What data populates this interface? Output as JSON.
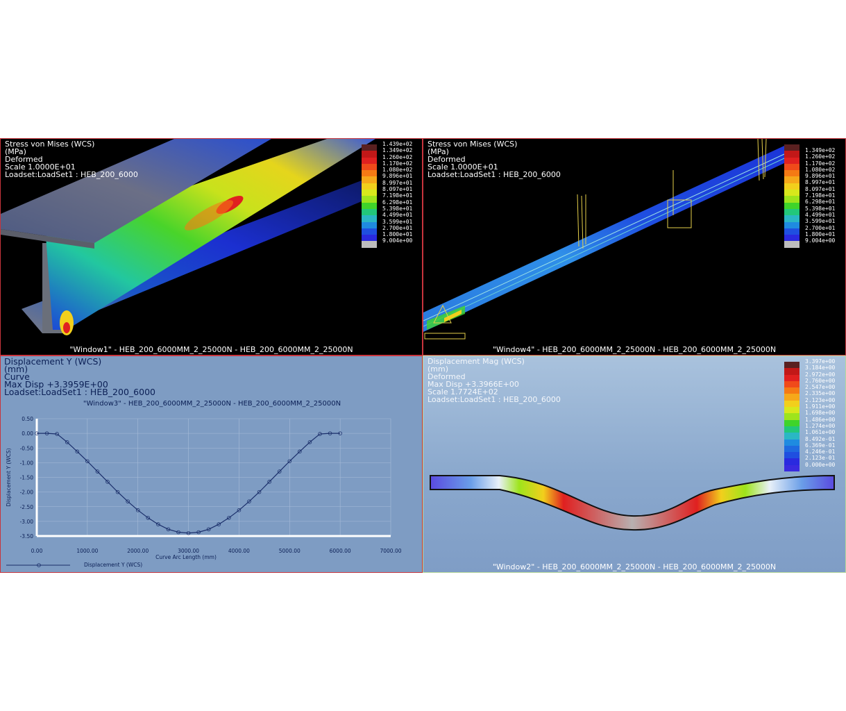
{
  "window1": {
    "header": [
      "Stress von Mises (WCS)",
      "(MPa)",
      "Deformed",
      "Scale  1.0000E+01",
      "Loadset:LoadSet1 :   HEB_200_6000"
    ],
    "caption": "\"Window1\" - HEB_200_6000MM_2_25000N - HEB_200_6000MM_2_25000N",
    "legend_top": "1.439e+02",
    "legend": [
      "1.349e+02",
      "1.260e+02",
      "1.170e+02",
      "1.080e+02",
      "9.896e+01",
      "8.997e+01",
      "8.097e+01",
      "7.198e+01",
      "6.298e+01",
      "5.398e+01",
      "4.499e+01",
      "3.599e+01",
      "2.700e+01",
      "1.800e+01",
      "9.004e+00"
    ],
    "colors": [
      "#5a2020",
      "#c21818",
      "#e02020",
      "#f04a1a",
      "#f57a14",
      "#f6a81a",
      "#f2cf1c",
      "#d8e81c",
      "#9ee41c",
      "#3fd42a",
      "#22c77a",
      "#2ab7c4",
      "#1f8be0",
      "#1f4fe0",
      "#2a2adf",
      "#bdbdbd"
    ]
  },
  "window4": {
    "header": [
      "Stress von Mises (WCS)",
      "(MPa)",
      "Deformed",
      "Scale  1.0000E+01",
      "Loadset:LoadSet1 :   HEB_200_6000"
    ],
    "caption": "\"Window4\" - HEB_200_6000MM_2_25000N - HEB_200_6000MM_2_25000N",
    "legend": [
      "1.349e+02",
      "1.260e+02",
      "1.170e+02",
      "1.080e+02",
      "9.896e+01",
      "8.997e+01",
      "8.097e+01",
      "7.198e+01",
      "6.298e+01",
      "5.398e+01",
      "4.499e+01",
      "3.599e+01",
      "2.700e+01",
      "1.800e+01",
      "9.004e+00"
    ]
  },
  "window3": {
    "header": [
      "Displacement Y (WCS)",
      "(mm)",
      "Curve",
      "Max Disp  +3.3959E+00",
      "Loadset:LoadSet1 :  HEB_200_6000"
    ],
    "plot_title": "\"Window3\" - HEB_200_6000MM_2_25000N - HEB_200_6000MM_2_25000N",
    "legend_label": "Displacement Y (WCS)"
  },
  "window2": {
    "header": [
      "Displacement Mag (WCS)",
      "(mm)",
      "Deformed",
      "Max Disp  +3.3966E+00",
      "Scale  1.7724E+02",
      "Loadset:LoadSet1 :   HEB_200_6000"
    ],
    "caption": "\"Window2\" - HEB_200_6000MM_2_25000N - HEB_200_6000MM_2_25000N",
    "legend": [
      "3.397e+00",
      "3.184e+00",
      "2.972e+00",
      "2.760e+00",
      "2.547e+00",
      "2.335e+00",
      "2.123e+00",
      "1.911e+00",
      "1.698e+00",
      "1.486e+00",
      "1.274e+00",
      "1.061e+00",
      "8.492e-01",
      "6.369e-01",
      "4.246e-01",
      "2.123e-01",
      "0.000e+00"
    ],
    "colors": [
      "#5a2020",
      "#c21818",
      "#e02020",
      "#f04a1a",
      "#f57a14",
      "#f6a81a",
      "#f2cf1c",
      "#d8e81c",
      "#9ee41c",
      "#3fd42a",
      "#22c77a",
      "#2ab7c4",
      "#1f8be0",
      "#1f6ae0",
      "#1f4fe0",
      "#2a2adf",
      "#3a2adf"
    ]
  },
  "chart_data": {
    "type": "line",
    "title": "\"Window3\" - HEB_200_6000MM_2_25000N - HEB_200_6000MM_2_25000N",
    "xlabel": "Curve Arc Length (mm)",
    "ylabel": "Displacement Y (WCS)",
    "xlim": [
      0,
      7000
    ],
    "ylim": [
      -3.5,
      0.5
    ],
    "xticks": [
      "0.00",
      "1000.00",
      "2000.00",
      "3000.00",
      "4000.00",
      "5000.00",
      "6000.00",
      "7000.00"
    ],
    "yticks": [
      "0.50",
      "0.00",
      "-0.50",
      "-1.00",
      "-1.50",
      "-2.00",
      "-2.50",
      "-3.00",
      "-3.50"
    ],
    "series": [
      {
        "name": "Displacement Y (WCS)",
        "x": [
          0,
          200,
          400,
          600,
          800,
          1000,
          1200,
          1400,
          1600,
          1800,
          2000,
          2200,
          2400,
          2600,
          2800,
          3000,
          3200,
          3400,
          3600,
          3800,
          4000,
          4200,
          4400,
          4600,
          4800,
          5000,
          5200,
          5400,
          5600,
          5800,
          6000
        ],
        "y": [
          0.0,
          0.0,
          -0.02,
          -0.3,
          -0.62,
          -0.95,
          -1.3,
          -1.65,
          -2.0,
          -2.32,
          -2.62,
          -2.88,
          -3.1,
          -3.27,
          -3.37,
          -3.4,
          -3.37,
          -3.27,
          -3.1,
          -2.88,
          -2.62,
          -2.32,
          -2.0,
          -1.65,
          -1.3,
          -0.95,
          -0.62,
          -0.3,
          -0.02,
          0.0,
          0.0
        ]
      }
    ]
  }
}
